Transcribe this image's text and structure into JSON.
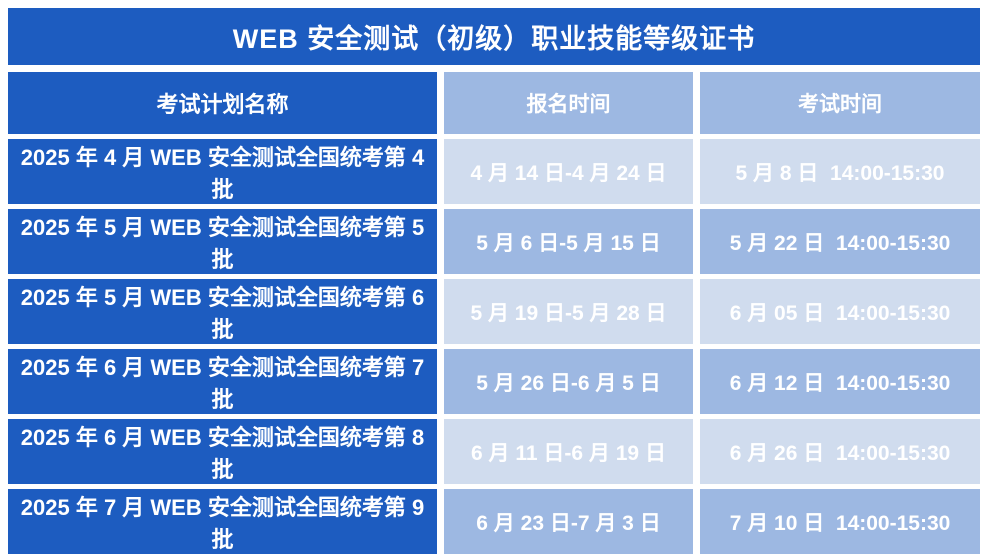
{
  "title": "WEB 安全测试（初级）职业技能等级证书",
  "table": {
    "columns": [
      "考试计划名称",
      "报名时间",
      "考试时间"
    ],
    "rows": [
      {
        "plan": "2025 年 4 月 WEB 安全测试全国统考第 4 批",
        "registration": "4 月 14 日-4 月 24 日",
        "exam": "5 月 8 日  14:00-15:30"
      },
      {
        "plan": "2025 年 5 月 WEB 安全测试全国统考第 5 批",
        "registration": "5 月 6 日-5 月 15 日",
        "exam": "5 月 22 日  14:00-15:30"
      },
      {
        "plan": "2025 年 5 月 WEB 安全测试全国统考第 6 批",
        "registration": "5 月 19 日-5 月 28 日",
        "exam": "6 月 05 日  14:00-15:30"
      },
      {
        "plan": "2025 年 6 月 WEB 安全测试全国统考第 7 批",
        "registration": "5 月 26 日-6 月 5 日",
        "exam": "6 月 12 日  14:00-15:30"
      },
      {
        "plan": "2025 年 6 月 WEB 安全测试全国统考第 8 批",
        "registration": "6 月 11 日-6 月 19 日",
        "exam": "6 月 26 日  14:00-15:30"
      },
      {
        "plan": "2025 年 7 月 WEB 安全测试全国统考第 9 批",
        "registration": "6 月 23 日-7 月 3 日",
        "exam": "7 月 10 日  14:00-15:30"
      }
    ]
  },
  "colors": {
    "dark_blue": "#1d5cc0",
    "medium_blue": "#9db8e2",
    "light_blue": "#d0dcee",
    "text": "#ffffff",
    "background": "#ffffff"
  }
}
